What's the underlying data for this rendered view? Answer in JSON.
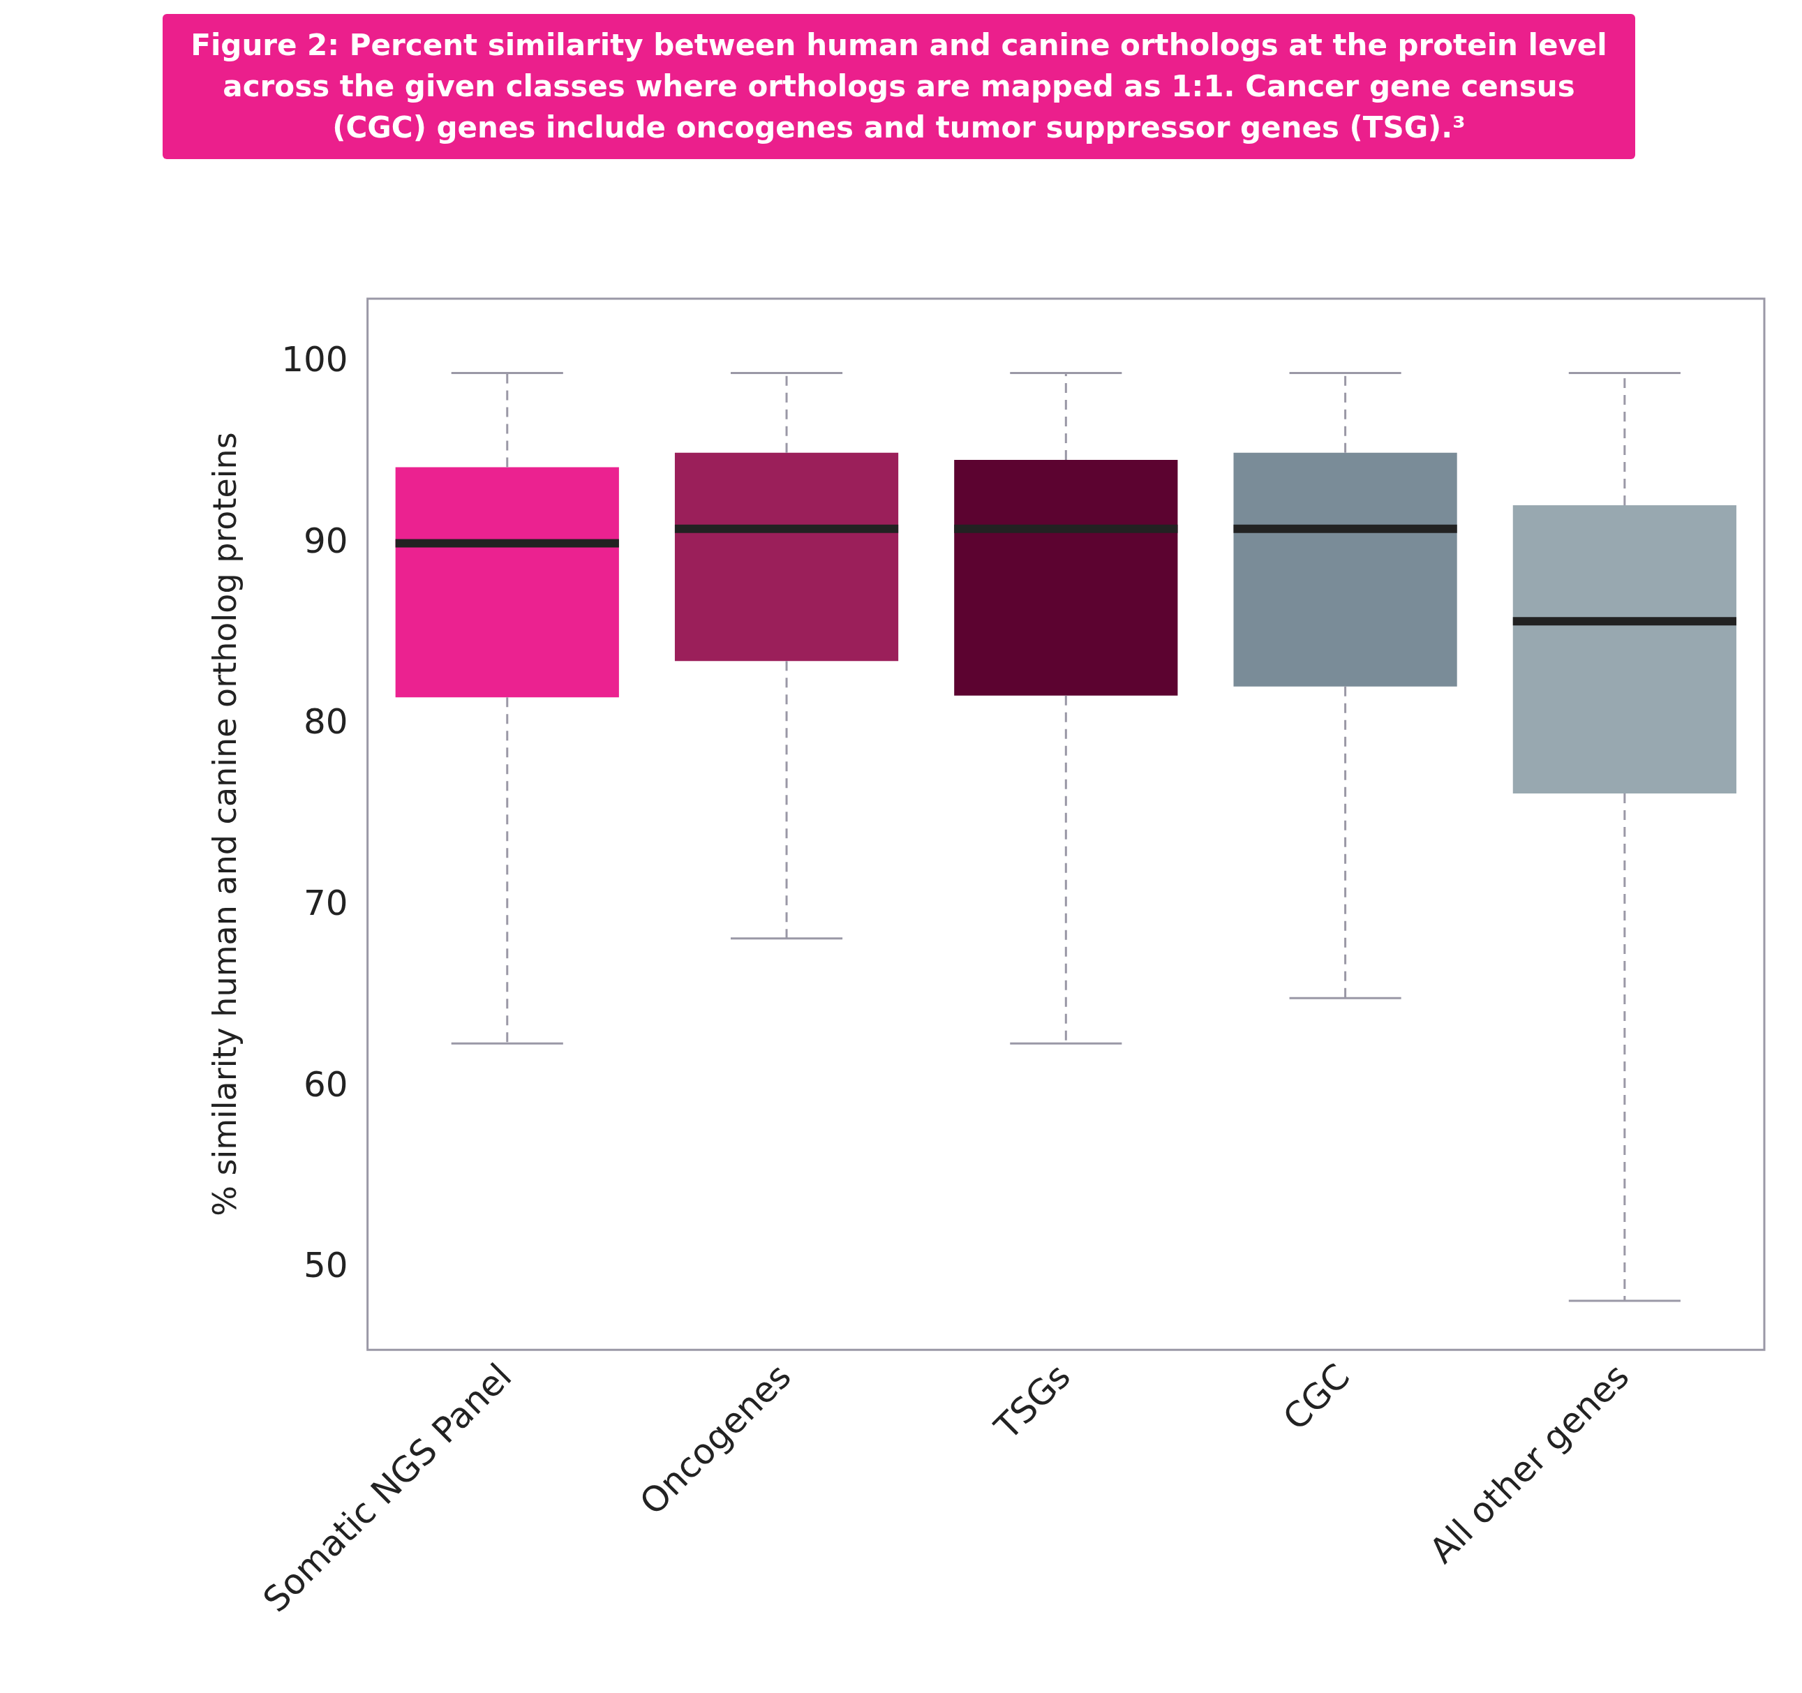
{
  "chart_data": {
    "type": "box",
    "title": "Figure 2: Percent similarity between human and canine orthologs at the protein level across the given classes where orthologs are mapped as 1:1. Cancer gene census (CGC) genes include oncogenes and tumor suppressor genes (TSG).³",
    "ylabel": "% similarity human and canine ortholog proteins",
    "categories": [
      "Somatic NGS Panel",
      "Oncogenes",
      "TSGs",
      "CGC",
      "All other genes"
    ],
    "colors": [
      "#eb2290",
      "#9b1f5a",
      "#5c0330",
      "#7a8c98",
      "#98a8b0"
    ],
    "boxes": [
      {
        "low": 62.4,
        "q1": 81.5,
        "median": 90,
        "q3": 94.2,
        "high": 99.4
      },
      {
        "low": 68.2,
        "q1": 83.5,
        "median": 90.8,
        "q3": 95,
        "high": 99.4
      },
      {
        "low": 62.4,
        "q1": 81.6,
        "median": 90.8,
        "q3": 94.6,
        "high": 99.4
      },
      {
        "low": 64.9,
        "q1": 82.1,
        "median": 90.8,
        "q3": 95,
        "high": 99.4
      },
      {
        "low": 48.2,
        "q1": 76.2,
        "median": 85.7,
        "q3": 92.1,
        "high": 99.4
      }
    ],
    "ylim": [
      45.5,
      103.5
    ],
    "yticks": [
      50,
      60,
      70,
      80,
      90,
      100
    ]
  }
}
